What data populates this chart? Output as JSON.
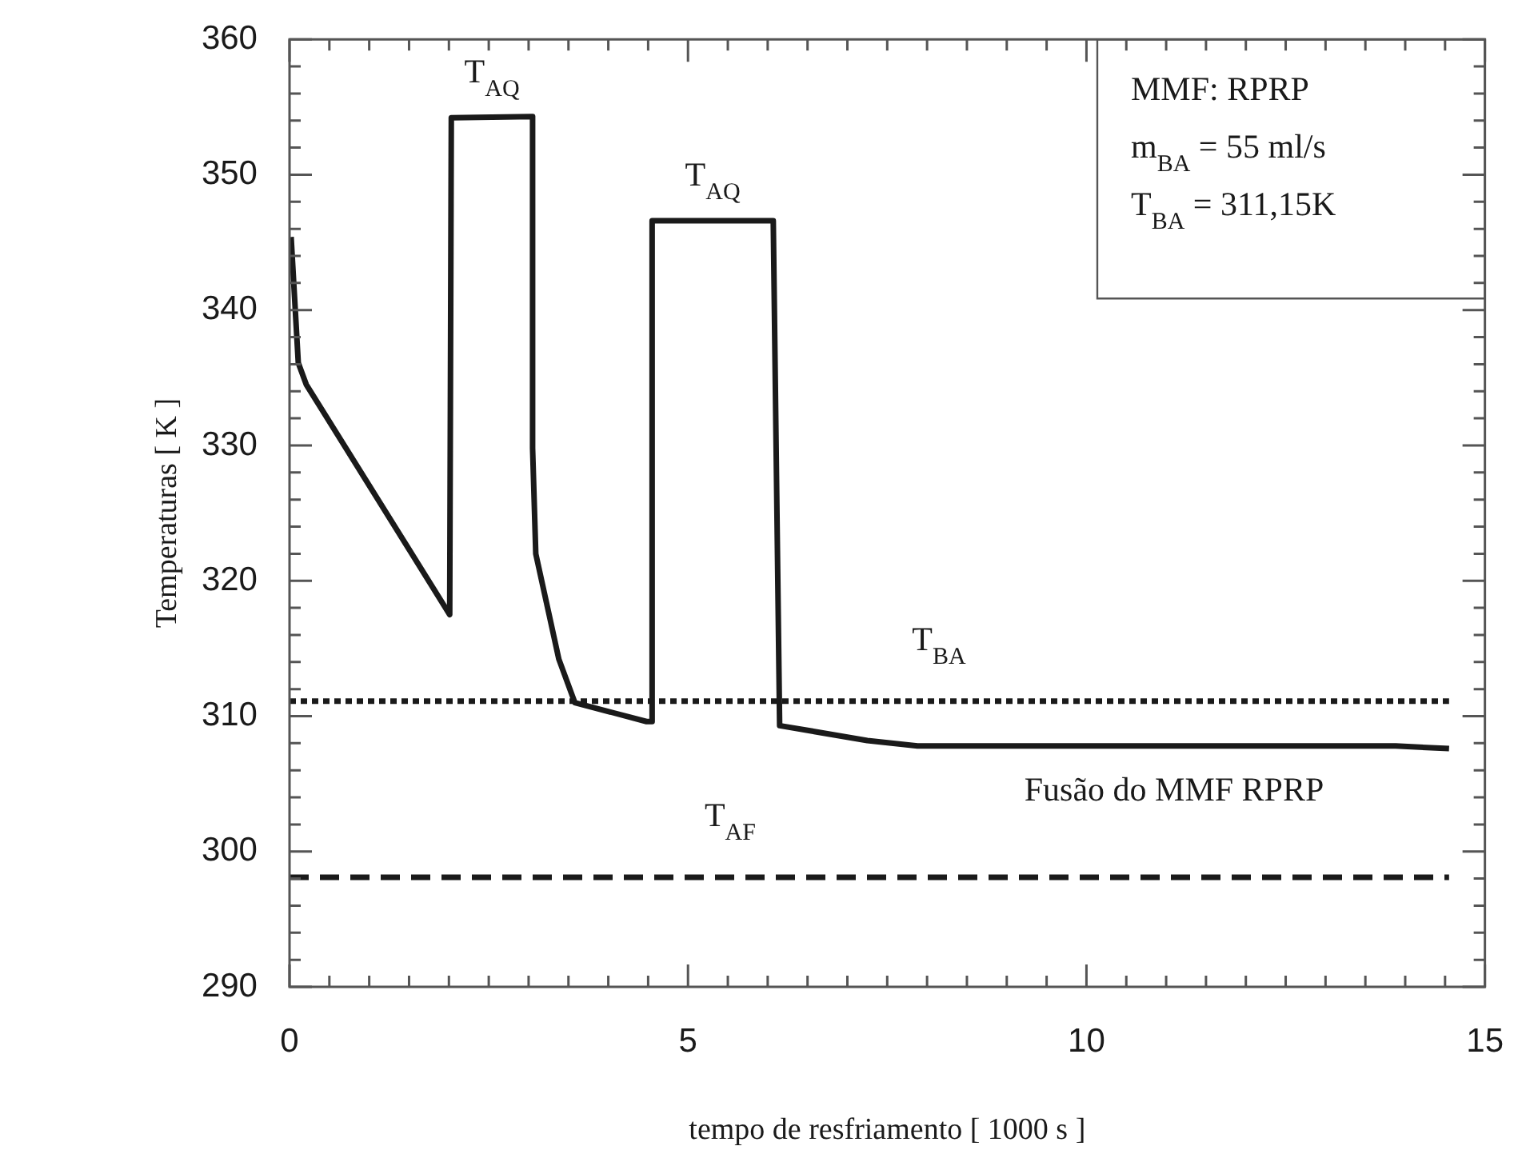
{
  "chart_data": {
    "type": "line",
    "xlabel": "tempo de resfriamento [ 1000 s ]",
    "ylabel": "Temperaturas [ K ]",
    "xlim": [
      0,
      15
    ],
    "ylim": [
      290,
      360
    ],
    "xticks": [
      0,
      {
        "value": 0.5,
        "label": null
      },
      {
        "value": 1,
        "label": null
      },
      {
        "value": 1.5,
        "label": null
      },
      {
        "value": 2,
        "label": null
      },
      {
        "value": 2.5,
        "label": null
      },
      {
        "value": 3,
        "label": null
      },
      {
        "value": 3.5,
        "label": null
      },
      {
        "value": 4,
        "label": null
      },
      {
        "value": 4.5,
        "label": null
      },
      5,
      {
        "value": 5.5,
        "label": null
      },
      {
        "value": 6,
        "label": null
      },
      {
        "value": 6.5,
        "label": null
      },
      {
        "value": 7,
        "label": null
      },
      {
        "value": 7.5,
        "label": null
      },
      {
        "value": 8,
        "label": null
      },
      {
        "value": 8.5,
        "label": null
      },
      {
        "value": 9,
        "label": null
      },
      {
        "value": 9.5,
        "label": null
      },
      10,
      {
        "value": 10.5,
        "label": null
      },
      {
        "value": 11,
        "label": null
      },
      {
        "value": 11.5,
        "label": null
      },
      {
        "value": 12,
        "label": null
      },
      {
        "value": 12.5,
        "label": null
      },
      {
        "value": 13,
        "label": null
      },
      {
        "value": 13.5,
        "label": null
      },
      {
        "value": 14,
        "label": null
      },
      {
        "value": 14.5,
        "label": null
      },
      15
    ],
    "yticks": [
      290,
      {
        "value": 292,
        "label": null
      },
      {
        "value": 294,
        "label": null
      },
      {
        "value": 296,
        "label": null
      },
      {
        "value": 298,
        "label": null
      },
      300,
      {
        "value": 302,
        "label": null
      },
      {
        "value": 304,
        "label": null
      },
      {
        "value": 306,
        "label": null
      },
      {
        "value": 308,
        "label": null
      },
      310,
      {
        "value": 312,
        "label": null
      },
      {
        "value": 314,
        "label": null
      },
      {
        "value": 316,
        "label": null
      },
      {
        "value": 318,
        "label": null
      },
      320,
      {
        "value": 322,
        "label": null
      },
      {
        "value": 324,
        "label": null
      },
      {
        "value": 326,
        "label": null
      },
      {
        "value": 328,
        "label": null
      },
      330,
      {
        "value": 332,
        "label": null
      },
      {
        "value": 334,
        "label": null
      },
      {
        "value": 336,
        "label": null
      },
      {
        "value": 338,
        "label": null
      },
      340,
      {
        "value": 342,
        "label": null
      },
      {
        "value": 344,
        "label": null
      },
      {
        "value": 346,
        "label": null
      },
      {
        "value": 348,
        "label": null
      },
      350,
      {
        "value": 352,
        "label": null
      },
      {
        "value": 354,
        "label": null
      },
      {
        "value": 356,
        "label": null
      },
      {
        "value": 358,
        "label": null
      },
      360
    ],
    "grid": false,
    "legend": false,
    "marker": "none",
    "series": [
      {
        "color": "#1a1a1a",
        "line_style": "solid",
        "x": [
          0.02,
          0.11,
          0.21,
          2.01,
          2.03,
          3.05,
          3.05,
          3.09,
          3.38,
          3.58,
          4.48,
          4.55,
          4.55,
          6.07,
          6.15,
          7.25,
          7.88,
          13.88,
          14.55
        ],
        "values": [
          345.4,
          336.1,
          334.5,
          317.5,
          354.2,
          354.3,
          329.8,
          322.0,
          314.2,
          311.0,
          309.6,
          309.6,
          346.6,
          346.6,
          309.3,
          308.2,
          307.8,
          307.8,
          307.6
        ]
      },
      {
        "name": "T$_{BA}$",
        "color": "#1a1a1a",
        "line_style": "dotted",
        "x": [
          0,
          14.55
        ],
        "values": [
          311.1,
          311.1
        ]
      },
      {
        "name": "T$_{AF}$",
        "color": "#1a1a1a",
        "line_style": "dashed",
        "x": [
          0,
          14.55
        ],
        "values": [
          298.1,
          298.1
        ]
      }
    ],
    "annotations": [
      {
        "text": "T$_{AQ}$",
        "x": 2.54,
        "y": 354.2
      },
      {
        "text": "T$_{AQ}$",
        "x": 5.31,
        "y": 346.6
      },
      {
        "text": "Fusão do MMF RPRP",
        "x": 11.1,
        "y": 307.8
      },
      "MMF: RPRP",
      "m$_{BA}$ = 55 ml/s",
      "T$_{BA}$ = 311,15K"
    ]
  }
}
